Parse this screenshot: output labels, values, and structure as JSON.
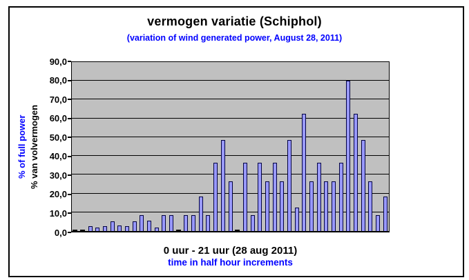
{
  "chart": {
    "title": "vermogen variatie (Schiphol)",
    "subtitle": "(variation of wind generated power, August 28, 2011)",
    "y_axis": {
      "title_primary": "% of full power",
      "title_secondary": "% van volvermogen",
      "tick_labels": [
        "90,0",
        "80,0",
        "70,0",
        "60,0",
        "50,0",
        "40,0",
        "30,0",
        "20,0",
        "10,0",
        "0,0"
      ]
    },
    "x_axis": {
      "title_line1": "0 uur - 21 uur (28 aug 2011)",
      "title_line2": "time in half hour increments"
    },
    "colors": {
      "bar_fill": "#9999ff",
      "bar_border": "#000040",
      "plot_bg": "#c0c0c0",
      "gridline": "#000000",
      "blue_text": "#0000ff",
      "black_text": "#000000",
      "background": "#ffffff"
    }
  },
  "chart_data": {
    "type": "bar",
    "title": "vermogen variatie (Schiphol)",
    "subtitle": "(variation of wind generated power, August 28, 2011)",
    "xlabel": "0 uur - 21 uur (28 aug 2011)",
    "xlabel2": "time in half hour increments",
    "ylabel_blue": "% of full power",
    "ylabel_black": "% van volvermogen",
    "ylim": [
      0,
      90
    ],
    "ytick_step": 10,
    "decimal_separator": "comma",
    "grid": true,
    "legend": false,
    "x_unit": "hours (half hour increments)",
    "x": [
      0,
      0.5,
      1,
      1.5,
      2,
      2.5,
      3,
      3.5,
      4,
      4.5,
      5,
      5.5,
      6,
      6.5,
      7,
      7.5,
      8,
      8.5,
      9,
      9.5,
      10,
      10.5,
      11,
      11.5,
      12,
      12.5,
      13,
      13.5,
      14,
      14.5,
      15,
      15.5,
      16,
      16.5,
      17,
      17.5,
      18,
      18.5,
      19,
      19.5,
      20,
      20.5,
      21
    ],
    "values": [
      0,
      0,
      2.5,
      2,
      2.5,
      5,
      3,
      2.5,
      5,
      8.5,
      5.5,
      2,
      8.5,
      8.5,
      0,
      8.5,
      8.5,
      18.5,
      8.5,
      36.5,
      48.5,
      26.5,
      0,
      36.5,
      8.5,
      36.5,
      26.5,
      36.5,
      26.5,
      48.5,
      12.5,
      62.5,
      26.5,
      36.5,
      26.5,
      26.5,
      36.5,
      80,
      62.5,
      48.5,
      26.5,
      8.5,
      18.5
    ]
  }
}
